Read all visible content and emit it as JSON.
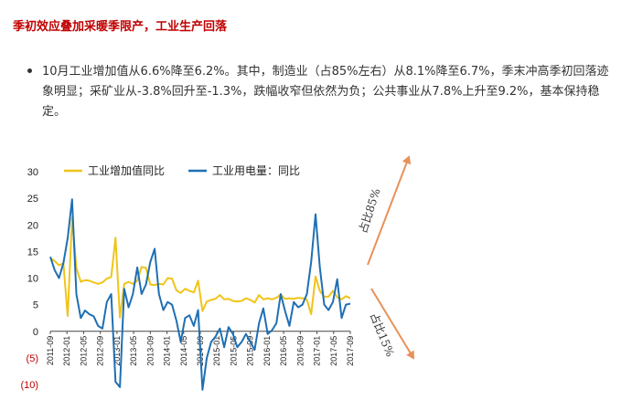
{
  "article": {
    "heading": "季初效应叠加采暖季限产，工业生产回落",
    "bullet": "10月工业增加值从6.6%降至6.2%。其中，制造业（占85%左右）从8.1%降至6.7%，季末冲高季初回落迹象明显；采矿业从-3.8%回升至-1.3%，跌幅收窄但依然为负；公共事业从7.8%上升至9.2%，基本保持稳定。"
  },
  "chart_data": {
    "type": "line",
    "title": "",
    "xlabel": "",
    "ylabel": "",
    "ylim": [
      -10,
      30
    ],
    "yticks": [
      30,
      25,
      20,
      15,
      10,
      5,
      0,
      -5,
      -10
    ],
    "ytick_labels": [
      "30",
      "25",
      "20",
      "15",
      "10",
      "5",
      "0",
      "(5)",
      "(10)"
    ],
    "negative_tick_color": "#c00000",
    "x_tick_labels": [
      "2011-09",
      "2012-01",
      "2012-05",
      "2012-09",
      "2013-01",
      "2013-05",
      "2013-09",
      "2014-01",
      "2014-05",
      "2014-09",
      "2015-01",
      "2015-05",
      "2015-09",
      "2016-01",
      "2016-05",
      "2016-09",
      "2017-01",
      "2017-05",
      "2017-09"
    ],
    "grid": false,
    "legend_position": "top",
    "series": [
      {
        "name": "工业增加值同比",
        "color": "#f0c419",
        "values": [
          13.8,
          13.2,
          12.4,
          12.8,
          2.9,
          21.3,
          11.9,
          9.3,
          9.6,
          9.5,
          9.2,
          8.9,
          9.2,
          9.9,
          10.2,
          17.6,
          2.6,
          8.9,
          9.3,
          8.9,
          9.5,
          12.1,
          11.9,
          8.8,
          8.7,
          8.9,
          8.8,
          10.0,
          9.9,
          7.7,
          7.2,
          8.0,
          7.6,
          7.3,
          9.5,
          3.8,
          5.6,
          5.9,
          6.1,
          6.8,
          6.0,
          6.1,
          5.7,
          5.6,
          5.7,
          6.2,
          5.9,
          5.4,
          6.8,
          6.0,
          6.2,
          6.0,
          6.3,
          6.9,
          6.1,
          6.2,
          6.1,
          6.3,
          6.2,
          6.0,
          3.2,
          10.3,
          7.6,
          6.5,
          6.5,
          7.6,
          6.4,
          6.0,
          6.6,
          6.2
        ]
      },
      {
        "name": "工业用电量：同比",
        "color": "#1f6fb4",
        "values": [
          14.0,
          11.5,
          10.0,
          12.8,
          17.5,
          24.8,
          7.0,
          2.5,
          3.9,
          3.2,
          2.8,
          1.0,
          0.5,
          5.5,
          7.0,
          -9.5,
          -10.5,
          8.0,
          4.5,
          7.0,
          12.0,
          7.0,
          8.8,
          13.0,
          15.5,
          7.0,
          4.0,
          5.5,
          5.0,
          2.0,
          -2.0,
          2.5,
          3.0,
          1.0,
          4.0,
          -11.0,
          -5.0,
          -2.0,
          -1.0,
          0.5,
          -3.0,
          0.8,
          -0.5,
          -3.0,
          -2.0,
          -0.5,
          -2.0,
          -3.5,
          1.5,
          4.3,
          -0.5,
          0.2,
          1.5,
          7.0,
          3.8,
          1.0,
          5.5,
          4.5,
          5.0,
          7.0,
          13.0,
          22.0,
          12.0,
          5.0,
          4.0,
          5.5,
          9.8,
          2.5,
          5.0,
          5.2
        ]
      }
    ],
    "annotations": [
      {
        "text": "占比85%",
        "direction": "up",
        "arrow_color": "#e8915a"
      },
      {
        "text": "占比15%",
        "direction": "down",
        "arrow_color": "#e8915a"
      }
    ]
  }
}
